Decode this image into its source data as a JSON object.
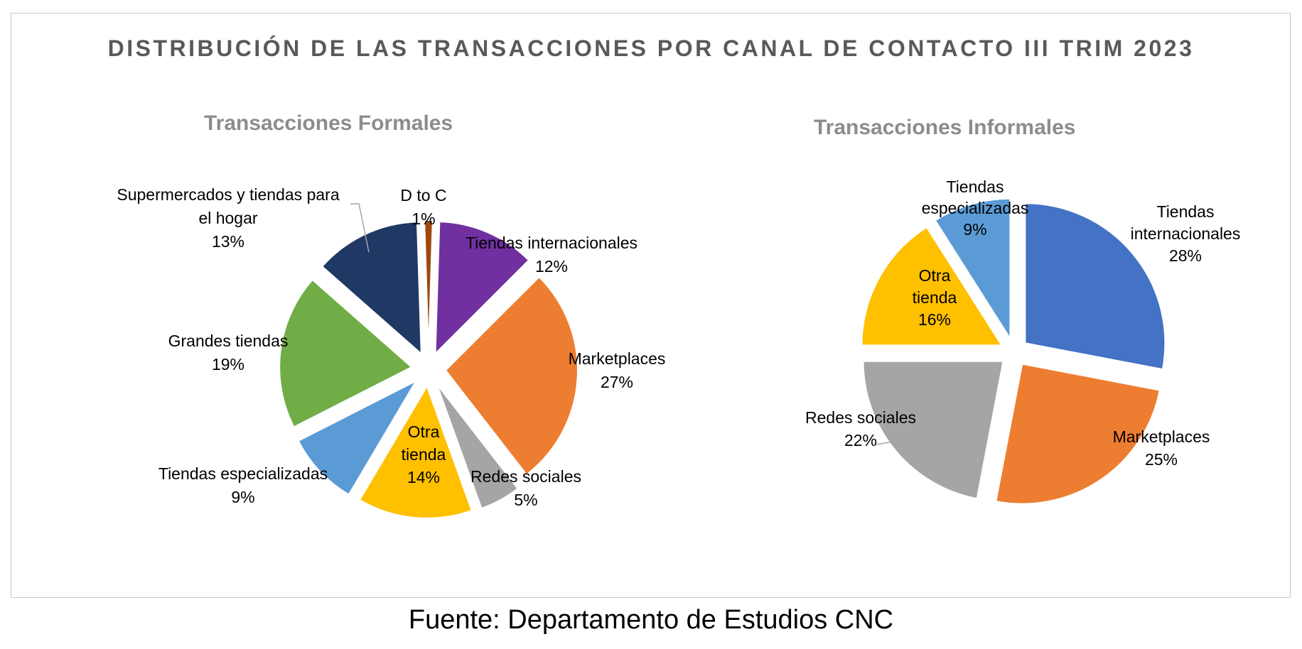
{
  "title": "DISTRIBUCIÓN DE LAS TRANSACCIONES  POR CANAL DE CONTACTO III TRIM 2023",
  "footer": "Fuente: Departamento de Estudios CNC",
  "chart_data": [
    {
      "type": "pie",
      "title": "Transacciones Formales",
      "slices": [
        {
          "label": "D to C",
          "value": 1,
          "value_label": "1%",
          "color": "#9e480e"
        },
        {
          "label": "Tiendas internacionales",
          "value": 12,
          "value_label": "12%",
          "color": "#7030a0"
        },
        {
          "label": "Marketplaces",
          "value": 27,
          "value_label": "27%",
          "color": "#ed7d31"
        },
        {
          "label": "Redes sociales",
          "value": 5,
          "value_label": "5%",
          "color": "#a5a5a5"
        },
        {
          "label": "Otra tienda",
          "value": 14,
          "value_label": "14%",
          "color": "#ffc000"
        },
        {
          "label": "Tiendas especializadas",
          "value": 9,
          "value_label": "9%",
          "color": "#5b9bd5"
        },
        {
          "label": "Grandes tiendas",
          "value": 19,
          "value_label": "19%",
          "color": "#70ad47"
        },
        {
          "label": "Supermercados y tiendas para el hogar",
          "value": 13,
          "value_label": "13%",
          "color": "#203864"
        }
      ]
    },
    {
      "type": "pie",
      "title": "Transacciones Informales",
      "slices": [
        {
          "label": "Tiendas internacionales",
          "value": 28,
          "value_label": "28%",
          "color": "#4472c4"
        },
        {
          "label": "Marketplaces",
          "value": 25,
          "value_label": "25%",
          "color": "#ed7d31"
        },
        {
          "label": "Redes sociales",
          "value": 22,
          "value_label": "22%",
          "color": "#a5a5a5"
        },
        {
          "label": "Otra tienda",
          "value": 16,
          "value_label": "16%",
          "color": "#ffc000"
        },
        {
          "label": "Tiendas especializadas",
          "value": 9,
          "value_label": "9%",
          "color": "#5b9bd5"
        }
      ]
    }
  ]
}
